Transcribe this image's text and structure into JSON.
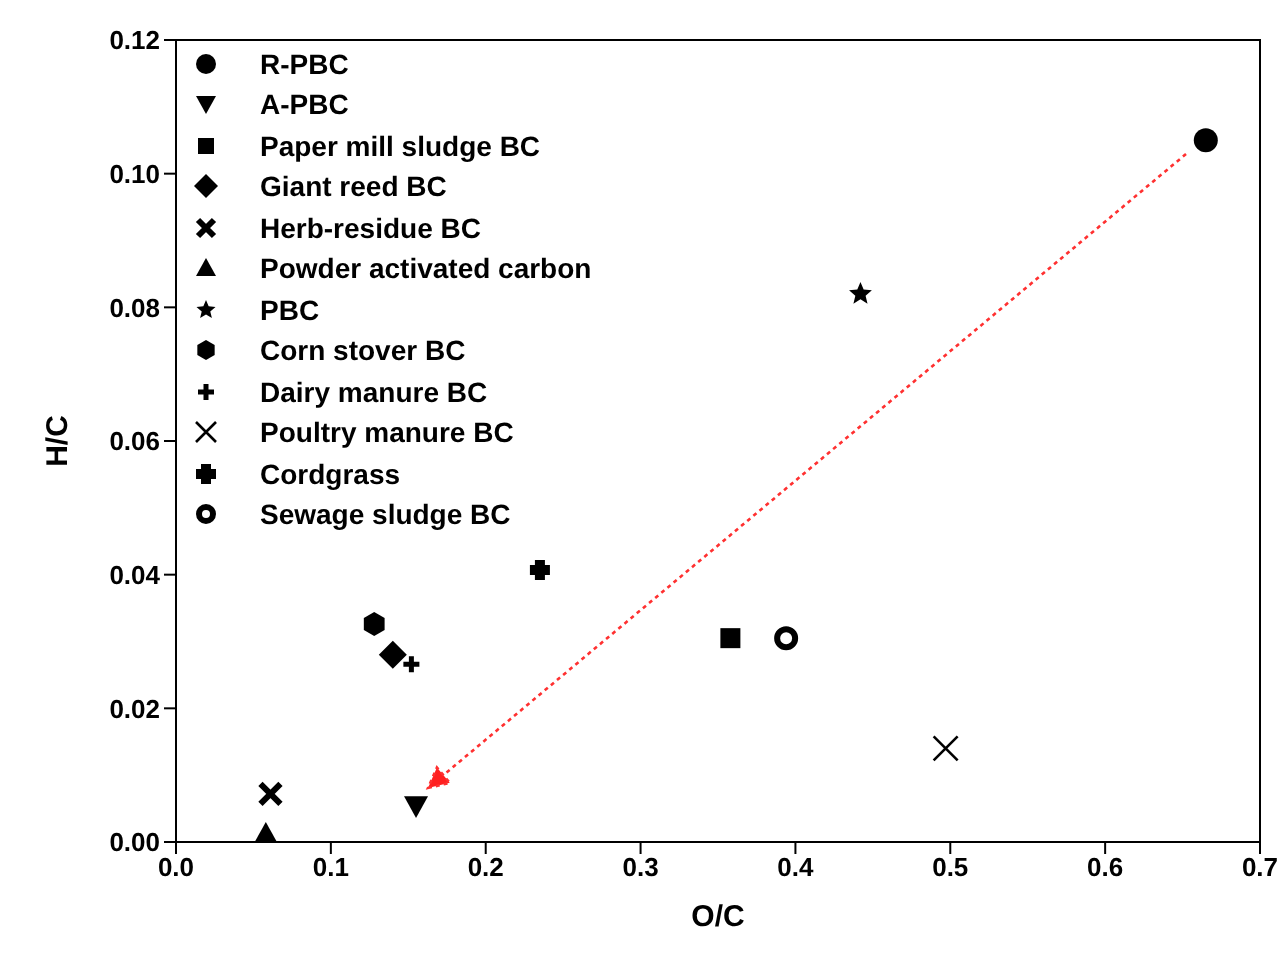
{
  "chart_data": {
    "type": "scatter",
    "xlabel": "O/C",
    "ylabel": "H/C",
    "xlim": [
      0,
      0.7
    ],
    "xticks": [
      {
        "value": 0,
        "label": "0.0"
      },
      0.1,
      0.2,
      0.3,
      0.4,
      0.5,
      0.6,
      0.7
    ],
    "ylim": [
      0,
      0.12
    ],
    "yticks": [
      {
        "value": 0,
        "label": "0.00"
      },
      0.02,
      0.04,
      0.06,
      0.08,
      {
        "value": 0.1,
        "label": "0.10"
      },
      0.12
    ],
    "grid": false,
    "legend": "top left",
    "series": [
      {
        "name": "R-PBC",
        "color": "#000000",
        "x": [
          0.665
        ],
        "values": [
          0.105
        ]
      },
      {
        "name": "A-PBC",
        "color": "#000000",
        "x": [
          0.155
        ],
        "values": [
          0.0054
        ]
      },
      {
        "name": "Paper mill sludge BC",
        "color": "#000000",
        "x": [
          0.358
        ],
        "values": [
          0.0305
        ]
      },
      {
        "name": "Giant reed BC",
        "color": "#000000",
        "x": [
          0.14
        ],
        "values": [
          0.028
        ]
      },
      {
        "name": "Herb-residue BC",
        "color": "#000000",
        "x": [
          0.061
        ],
        "values": [
          0.0072
        ]
      },
      {
        "name": "Powder activated carbon",
        "color": "#000000",
        "x": [
          0.058
        ],
        "values": [
          0.0012
        ]
      },
      {
        "name": "PBC",
        "color": "#000000",
        "x": [
          0.442
        ],
        "values": [
          0.082
        ]
      },
      {
        "name": "Corn stover BC",
        "color": "#000000",
        "x": [
          0.128
        ],
        "values": [
          0.0326
        ]
      },
      {
        "name": "Dairy manure BC",
        "color": "#000000",
        "x": [
          0.152
        ],
        "values": [
          0.0266
        ]
      },
      {
        "name": "Poultry manure BC",
        "color": "#000000",
        "x": [
          0.497
        ],
        "values": [
          0.014
        ]
      },
      {
        "name": "Cordgrass",
        "color": "#000000",
        "x": [
          0.235
        ],
        "values": [
          0.0407
        ]
      },
      {
        "name": "Sewage sludge BC",
        "color": "#000000",
        "x": [
          0.394
        ],
        "values": [
          0.0305
        ]
      }
    ]
  }
}
